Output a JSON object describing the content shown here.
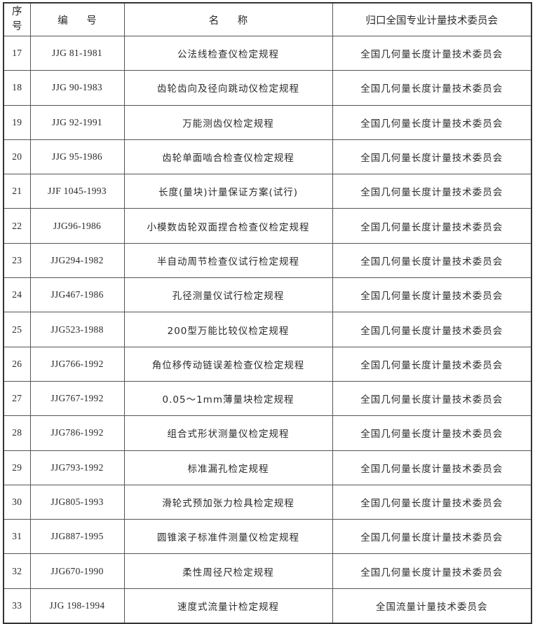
{
  "header": {
    "seq": "序号",
    "code": "编 号",
    "name": "名 称",
    "org": "归口全国专业计量技术委员会"
  },
  "rows": [
    {
      "seq": "17",
      "code": "JJG 81-1981",
      "name": "公法线检查仪检定规程",
      "org": "全国几何量长度计量技术委员会"
    },
    {
      "seq": "18",
      "code": "JJG 90-1983",
      "name": "齿轮齿向及径向跳动仪检定规程",
      "org": "全国几何量长度计量技术委员会"
    },
    {
      "seq": "19",
      "code": "JJG 92-1991",
      "name": "万能测齿仪检定规程",
      "org": "全国几何量长度计量技术委员会"
    },
    {
      "seq": "20",
      "code": "JJG 95-1986",
      "name": "齿轮单面啮合检查仪检定规程",
      "org": "全国几何量长度计量技术委员会"
    },
    {
      "seq": "21",
      "code": "JJF 1045-1993",
      "name": "长度(量块)计量保证方案(试行)",
      "org": "全国几何量长度计量技术委员会"
    },
    {
      "seq": "22",
      "code": "JJG96-1986",
      "name": "小模数齿轮双面捏合检查仪检定规程",
      "org": "全国几何量长度计量技术委员会"
    },
    {
      "seq": "23",
      "code": "JJG294-1982",
      "name": "半自动周节检查仪试行检定规程",
      "org": "全国几何量长度计量技术委员会"
    },
    {
      "seq": "24",
      "code": "JJG467-1986",
      "name": "孔径测量仪试行检定规程",
      "org": "全国几何量长度计量技术委员会"
    },
    {
      "seq": "25",
      "code": "JJG523-1988",
      "name": "200型万能比较仪检定规程",
      "org": "全国几何量长度计量技术委员会"
    },
    {
      "seq": "26",
      "code": "JJG766-1992",
      "name": "角位移传动链误差检查仪检定规程",
      "org": "全国几何量长度计量技术委员会"
    },
    {
      "seq": "27",
      "code": "JJG767-1992",
      "name": "0.05～1mm薄量块检定规程",
      "org": "全国几何量长度计量技术委员会"
    },
    {
      "seq": "28",
      "code": "JJG786-1992",
      "name": "组合式形状测量仪检定规程",
      "org": "全国几何量长度计量技术委员会"
    },
    {
      "seq": "29",
      "code": "JJG793-1992",
      "name": "标准漏孔检定规程",
      "org": "全国几何量长度计量技术委员会"
    },
    {
      "seq": "30",
      "code": "JJG805-1993",
      "name": "滑轮式预加张力检具检定规程",
      "org": "全国几何量长度计量技术委员会"
    },
    {
      "seq": "31",
      "code": "JJG887-1995",
      "name": "圆锥滚子标准件测量仪检定规程",
      "org": "全国几何量长度计量技术委员会"
    },
    {
      "seq": "32",
      "code": "JJG670-1990",
      "name": "柔性周径尺检定规程",
      "org": "全国几何量长度计量技术委员会"
    },
    {
      "seq": "33",
      "code": "JJG 198-1994",
      "name": "速度式流量计检定规程",
      "org": "全国流量计量技术委员会"
    }
  ]
}
